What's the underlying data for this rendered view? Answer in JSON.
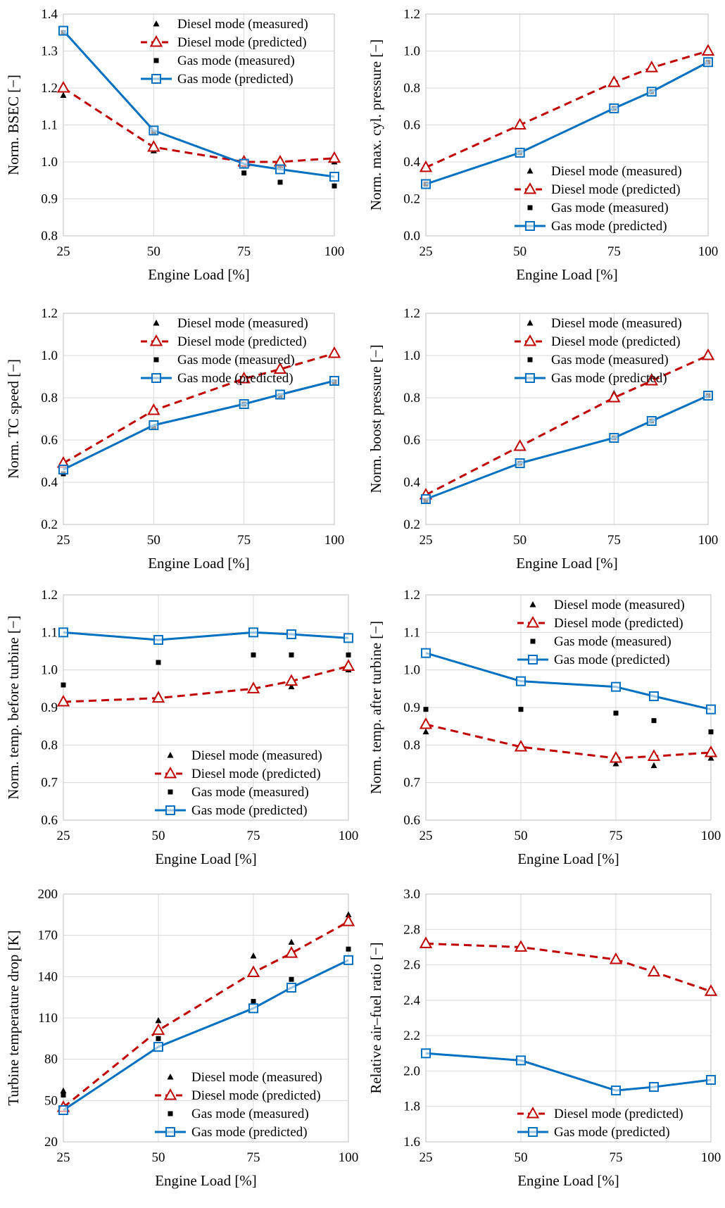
{
  "colors": {
    "diesel": "#C00000",
    "gas": "#0070C0",
    "marker": "#000000",
    "grid": "#d9d9d9"
  },
  "chart_data": [
    {
      "type": "line",
      "ylabel": "Norm. BSEC [−]",
      "xlabel": "Engine Load [%]",
      "xlim": [
        25,
        100
      ],
      "ylim": [
        0.8,
        1.4
      ],
      "xticks": [
        "25",
        "50",
        "75",
        "100"
      ],
      "yticks": [
        "0.8",
        "0.9",
        "1.0",
        "1.1",
        "1.2",
        "1.3",
        "1.4"
      ],
      "legend": "top-right",
      "series": [
        {
          "name": "Diesel mode (measured)",
          "x": [
            25,
            50,
            75,
            85,
            100
          ],
          "y": [
            1.18,
            1.03,
            0.99,
            0.99,
            1.0
          ]
        },
        {
          "name": "Diesel mode (predicted)",
          "x": [
            25,
            50,
            75,
            85,
            100
          ],
          "y": [
            1.2,
            1.04,
            1.0,
            1.0,
            1.01
          ]
        },
        {
          "name": "Gas mode (measured)",
          "x": [
            25,
            50,
            75,
            85,
            100
          ],
          "y": [
            1.35,
            1.08,
            0.97,
            0.945,
            0.935
          ]
        },
        {
          "name": "Gas mode (predicted)",
          "x": [
            25,
            50,
            75,
            85,
            100
          ],
          "y": [
            1.355,
            1.085,
            0.995,
            0.98,
            0.96
          ]
        }
      ]
    },
    {
      "type": "line",
      "ylabel": "Norm. max. cyl. pressure [−]",
      "xlabel": "Engine Load [%]",
      "xlim": [
        25,
        100
      ],
      "ylim": [
        0.0,
        1.2
      ],
      "xticks": [
        "25",
        "50",
        "75",
        "100"
      ],
      "yticks": [
        "0.0",
        "0.2",
        "0.4",
        "0.6",
        "0.8",
        "1.0",
        "1.2"
      ],
      "legend": "bottom-right",
      "series": [
        {
          "name": "Diesel mode (measured)",
          "x": [
            25,
            50,
            75,
            85,
            100
          ],
          "y": [
            0.36,
            0.61,
            0.83,
            0.91,
            1.0
          ]
        },
        {
          "name": "Diesel mode (predicted)",
          "x": [
            25,
            50,
            75,
            85,
            100
          ],
          "y": [
            0.37,
            0.6,
            0.83,
            0.91,
            1.0
          ]
        },
        {
          "name": "Gas mode (measured)",
          "x": [
            25,
            50,
            75,
            85,
            100
          ],
          "y": [
            0.28,
            0.45,
            0.69,
            0.78,
            0.94
          ]
        },
        {
          "name": "Gas mode (predicted)",
          "x": [
            25,
            50,
            75,
            85,
            100
          ],
          "y": [
            0.28,
            0.45,
            0.69,
            0.78,
            0.94
          ]
        }
      ]
    },
    {
      "type": "line",
      "ylabel": "Norm. TC speed [−]",
      "xlabel": "Engine Load [%]",
      "xlim": [
        25,
        100
      ],
      "ylim": [
        0.2,
        1.2
      ],
      "xticks": [
        "25",
        "50",
        "75",
        "100"
      ],
      "yticks": [
        "0.2",
        "0.4",
        "0.6",
        "0.8",
        "1.0",
        "1.2"
      ],
      "legend": "top-right",
      "series": [
        {
          "name": "Diesel mode (measured)",
          "x": [
            25,
            50,
            75,
            85,
            100
          ],
          "y": [
            0.48,
            0.74,
            0.9,
            0.94,
            1.01
          ]
        },
        {
          "name": "Diesel mode (predicted)",
          "x": [
            25,
            50,
            75,
            85,
            100
          ],
          "y": [
            0.49,
            0.74,
            0.89,
            0.935,
            1.01
          ]
        },
        {
          "name": "Gas mode (measured)",
          "x": [
            25,
            50,
            75,
            85,
            100
          ],
          "y": [
            0.44,
            0.66,
            0.77,
            0.81,
            0.875
          ]
        },
        {
          "name": "Gas mode (predicted)",
          "x": [
            25,
            50,
            75,
            85,
            100
          ],
          "y": [
            0.46,
            0.67,
            0.77,
            0.815,
            0.88
          ]
        }
      ]
    },
    {
      "type": "line",
      "ylabel": "Norm. boost pressure [−]",
      "xlabel": "Engine Load [%]",
      "xlim": [
        25,
        100
      ],
      "ylim": [
        0.2,
        1.2
      ],
      "xticks": [
        "25",
        "50",
        "75",
        "100"
      ],
      "yticks": [
        "0.2",
        "0.4",
        "0.6",
        "0.8",
        "1.0",
        "1.2"
      ],
      "legend": "top-right",
      "series": [
        {
          "name": "Diesel mode (measured)",
          "x": [
            25,
            50,
            75,
            85,
            100
          ],
          "y": [
            0.33,
            0.56,
            0.82,
            0.9,
            1.0
          ]
        },
        {
          "name": "Diesel mode (predicted)",
          "x": [
            25,
            50,
            75,
            85,
            100
          ],
          "y": [
            0.34,
            0.57,
            0.8,
            0.88,
            1.0
          ]
        },
        {
          "name": "Gas mode (measured)",
          "x": [
            25,
            50,
            75,
            85,
            100
          ],
          "y": [
            0.31,
            0.49,
            0.61,
            0.69,
            0.81
          ]
        },
        {
          "name": "Gas mode (predicted)",
          "x": [
            25,
            50,
            75,
            85,
            100
          ],
          "y": [
            0.32,
            0.49,
            0.61,
            0.69,
            0.81
          ]
        }
      ]
    },
    {
      "type": "line",
      "ylabel": "Norm. temp. before turbine [−]",
      "xlabel": "Engine Load [%]",
      "xlim": [
        25,
        100
      ],
      "ylim": [
        0.6,
        1.2
      ],
      "xticks": [
        "25",
        "50",
        "75",
        "100"
      ],
      "yticks": [
        "0.6",
        "0.7",
        "0.8",
        "0.9",
        "1.0",
        "1.1",
        "1.2"
      ],
      "legend": "bottom-right",
      "series": [
        {
          "name": "Diesel mode (measured)",
          "x": [
            25,
            50,
            75,
            85,
            100
          ],
          "y": [
            0.91,
            0.935,
            0.945,
            0.955,
            1.0
          ]
        },
        {
          "name": "Diesel mode (predicted)",
          "x": [
            25,
            50,
            75,
            85,
            100
          ],
          "y": [
            0.915,
            0.925,
            0.95,
            0.97,
            1.01
          ]
        },
        {
          "name": "Gas mode (measured)",
          "x": [
            25,
            50,
            75,
            85,
            100
          ],
          "y": [
            0.96,
            1.02,
            1.04,
            1.04,
            1.04
          ]
        },
        {
          "name": "Gas mode (predicted)",
          "x": [
            25,
            50,
            75,
            85,
            100
          ],
          "y": [
            1.1,
            1.08,
            1.1,
            1.095,
            1.085
          ]
        }
      ]
    },
    {
      "type": "line",
      "ylabel": "Norm. temp. after turbine [−]",
      "xlabel": "Engine Load [%]",
      "xlim": [
        25,
        100
      ],
      "ylim": [
        0.6,
        1.2
      ],
      "xticks": [
        "25",
        "50",
        "75",
        "100"
      ],
      "yticks": [
        "0.6",
        "0.7",
        "0.8",
        "0.9",
        "1.0",
        "1.1",
        "1.2"
      ],
      "legend": "top-right",
      "series": [
        {
          "name": "Diesel mode (measured)",
          "x": [
            25,
            50,
            75,
            85,
            100
          ],
          "y": [
            0.835,
            0.795,
            0.75,
            0.745,
            0.765
          ]
        },
        {
          "name": "Diesel mode (predicted)",
          "x": [
            25,
            50,
            75,
            85,
            100
          ],
          "y": [
            0.855,
            0.795,
            0.765,
            0.77,
            0.78
          ]
        },
        {
          "name": "Gas mode (measured)",
          "x": [
            25,
            50,
            75,
            85,
            100
          ],
          "y": [
            0.895,
            0.895,
            0.885,
            0.865,
            0.835
          ]
        },
        {
          "name": "Gas mode (predicted)",
          "x": [
            25,
            50,
            75,
            85,
            100
          ],
          "y": [
            1.045,
            0.97,
            0.955,
            0.93,
            0.895
          ]
        }
      ]
    },
    {
      "type": "line",
      "ylabel": "Turbine temperature drop [K]",
      "xlabel": "Engine Load [%]",
      "xlim": [
        25,
        100
      ],
      "ylim": [
        20,
        200
      ],
      "xticks": [
        "25",
        "50",
        "75",
        "100"
      ],
      "yticks": [
        "20",
        "50",
        "80",
        "110",
        "140",
        "170",
        "200"
      ],
      "legend": "bottom-right",
      "series": [
        {
          "name": "Diesel mode (measured)",
          "x": [
            25,
            50,
            75,
            85,
            100
          ],
          "y": [
            57,
            108,
            155,
            165,
            185
          ]
        },
        {
          "name": "Diesel mode (predicted)",
          "x": [
            25,
            50,
            75,
            85,
            100
          ],
          "y": [
            45,
            101,
            143,
            157,
            180
          ]
        },
        {
          "name": "Gas mode (measured)",
          "x": [
            25,
            50,
            75,
            85,
            100
          ],
          "y": [
            54,
            95,
            122,
            138,
            160
          ]
        },
        {
          "name": "Gas mode (predicted)",
          "x": [
            25,
            50,
            75,
            85,
            100
          ],
          "y": [
            43,
            89,
            117,
            132,
            152
          ]
        }
      ]
    },
    {
      "type": "line",
      "ylabel": "Relative air–fuel ratio [−]",
      "xlabel": "Engine Load [%]",
      "xlim": [
        25,
        100
      ],
      "ylim": [
        1.6,
        3.0
      ],
      "xticks": [
        "25",
        "50",
        "75",
        "100"
      ],
      "yticks": [
        "1.6",
        "1.8",
        "2.0",
        "2.2",
        "2.4",
        "2.6",
        "2.8",
        "3.0"
      ],
      "legend": "bottom-right",
      "series": [
        {
          "name": "Diesel mode (predicted)",
          "x": [
            25,
            50,
            75,
            85,
            100
          ],
          "y": [
            2.72,
            2.7,
            2.63,
            2.56,
            2.45
          ]
        },
        {
          "name": "Gas mode (predicted)",
          "x": [
            25,
            50,
            75,
            85,
            100
          ],
          "y": [
            2.1,
            2.06,
            1.89,
            1.91,
            1.95
          ]
        }
      ]
    }
  ]
}
